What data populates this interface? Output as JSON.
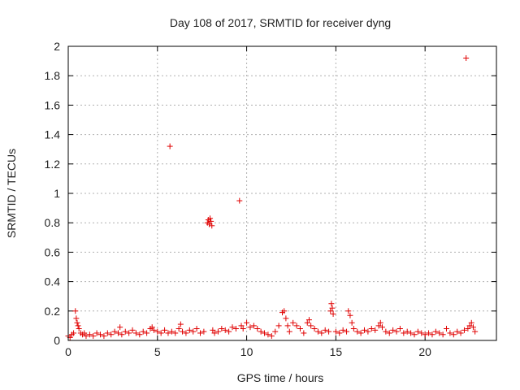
{
  "chart_data": {
    "type": "scatter",
    "title": "Day 108 of 2017, SRMTID for receiver dyng",
    "xlabel": "GPS time / hours",
    "ylabel": "SRMTID / TECUs",
    "xlim": [
      0,
      24
    ],
    "ylim": [
      0,
      2
    ],
    "xticks": [
      0,
      5,
      10,
      15,
      20
    ],
    "yticks": [
      0,
      0.2,
      0.4,
      0.6,
      0.8,
      1,
      1.2,
      1.4,
      1.6,
      1.8,
      2
    ],
    "xtick_labels": [
      "0",
      "5",
      "10",
      "15",
      "20"
    ],
    "ytick_labels": [
      "0",
      "0.2",
      "0.4",
      "0.6",
      "0.8",
      "1",
      "1.2",
      "1.4",
      "1.6",
      "1.8",
      "2"
    ],
    "grid": true,
    "marker": "+",
    "color": "#e00000",
    "series": [
      {
        "x": [
          0.0,
          0.1,
          0.2,
          0.3,
          0.4,
          0.45,
          0.5,
          0.55,
          0.6,
          0.7,
          0.8,
          0.9,
          1.0,
          1.2,
          1.4,
          1.6,
          1.8,
          2.0,
          2.2,
          2.4,
          2.6,
          2.8,
          2.9,
          3.0,
          3.2,
          3.4,
          3.6,
          3.8,
          4.0,
          4.2,
          4.4,
          4.6,
          4.7,
          4.8,
          5.0,
          5.2,
          5.4,
          5.6,
          5.7,
          5.8,
          6.0,
          6.2,
          6.3,
          6.4,
          6.6,
          6.8,
          7.0,
          7.2,
          7.4,
          7.6,
          7.8,
          7.85,
          7.9,
          7.95,
          8.0,
          8.05,
          8.1,
          8.2,
          8.4,
          8.6,
          8.8,
          9.0,
          9.2,
          9.4,
          9.6,
          9.7,
          9.8,
          10.0,
          10.2,
          10.4,
          10.6,
          10.8,
          11.0,
          11.2,
          11.4,
          11.6,
          11.8,
          12.0,
          12.1,
          12.2,
          12.3,
          12.4,
          12.6,
          12.8,
          13.0,
          13.2,
          13.4,
          13.5,
          13.6,
          13.8,
          14.0,
          14.2,
          14.4,
          14.6,
          14.7,
          14.75,
          14.8,
          14.85,
          15.0,
          15.2,
          15.4,
          15.6,
          15.7,
          15.8,
          15.9,
          16.0,
          16.2,
          16.4,
          16.6,
          16.8,
          17.0,
          17.2,
          17.4,
          17.5,
          17.6,
          17.8,
          18.0,
          18.2,
          18.4,
          18.6,
          18.8,
          19.0,
          19.2,
          19.4,
          19.6,
          19.8,
          20.0,
          20.2,
          20.4,
          20.6,
          20.8,
          21.0,
          21.2,
          21.4,
          21.6,
          21.8,
          22.0,
          22.2,
          22.3,
          22.4,
          22.5,
          22.6,
          22.7,
          22.8
        ],
        "y": [
          0.03,
          0.02,
          0.04,
          0.05,
          0.2,
          0.15,
          0.12,
          0.1,
          0.08,
          0.05,
          0.04,
          0.05,
          0.03,
          0.04,
          0.03,
          0.05,
          0.04,
          0.03,
          0.05,
          0.04,
          0.06,
          0.05,
          0.09,
          0.04,
          0.06,
          0.05,
          0.07,
          0.05,
          0.04,
          0.06,
          0.05,
          0.08,
          0.09,
          0.07,
          0.06,
          0.05,
          0.07,
          0.05,
          1.32,
          0.06,
          0.05,
          0.08,
          0.11,
          0.06,
          0.05,
          0.07,
          0.06,
          0.08,
          0.05,
          0.06,
          0.8,
          0.82,
          0.79,
          0.83,
          0.81,
          0.78,
          0.07,
          0.05,
          0.06,
          0.08,
          0.07,
          0.06,
          0.09,
          0.08,
          0.95,
          0.1,
          0.08,
          0.12,
          0.09,
          0.1,
          0.08,
          0.06,
          0.05,
          0.04,
          0.03,
          0.06,
          0.1,
          0.19,
          0.2,
          0.15,
          0.1,
          0.06,
          0.12,
          0.1,
          0.08,
          0.05,
          0.12,
          0.14,
          0.1,
          0.08,
          0.06,
          0.05,
          0.07,
          0.06,
          0.2,
          0.25,
          0.22,
          0.18,
          0.06,
          0.05,
          0.07,
          0.06,
          0.2,
          0.17,
          0.12,
          0.08,
          0.06,
          0.05,
          0.07,
          0.06,
          0.08,
          0.07,
          0.1,
          0.12,
          0.09,
          0.06,
          0.05,
          0.07,
          0.06,
          0.08,
          0.05,
          0.06,
          0.05,
          0.04,
          0.06,
          0.05,
          0.04,
          0.05,
          0.04,
          0.06,
          0.05,
          0.04,
          0.08,
          0.05,
          0.04,
          0.06,
          0.05,
          0.07,
          1.92,
          0.08,
          0.1,
          0.12,
          0.09,
          0.06
        ]
      }
    ]
  }
}
